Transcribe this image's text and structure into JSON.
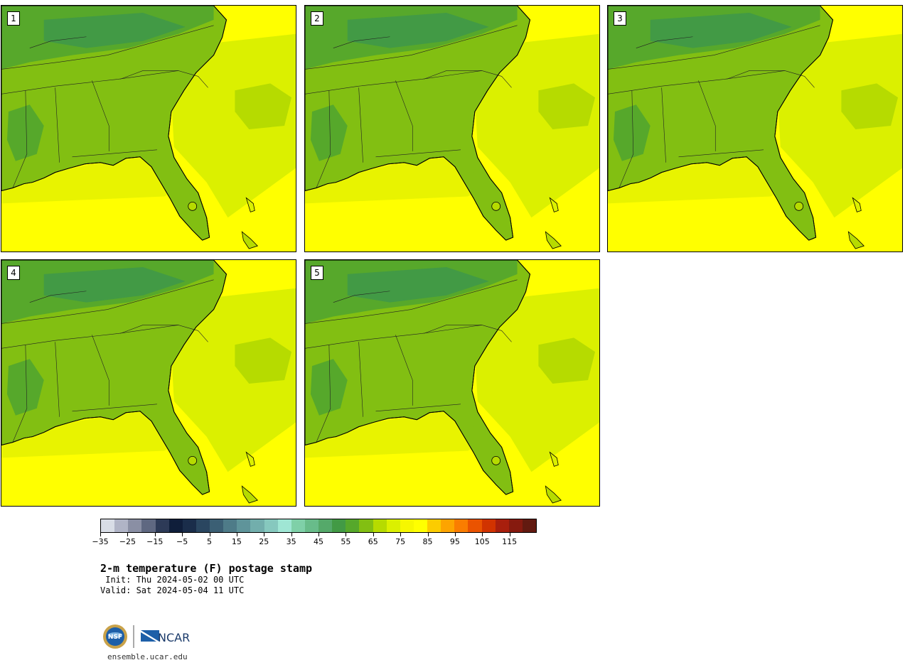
{
  "panels": [
    {
      "label": "1"
    },
    {
      "label": "2"
    },
    {
      "label": "3"
    },
    {
      "label": "4"
    },
    {
      "label": "5"
    }
  ],
  "colorbar": {
    "colors": [
      "#d8dde6",
      "#b0b4c6",
      "#8a8fa4",
      "#5f6881",
      "#2d3a57",
      "#0f1e3a",
      "#1a2d4a",
      "#2a4660",
      "#3b5f74",
      "#4e7b88",
      "#5f949a",
      "#72aeac",
      "#86c8be",
      "#9fe6d4",
      "#7fd0a8",
      "#68bc8a",
      "#55a96a",
      "#429a45",
      "#56a82b",
      "#82bf12",
      "#b6db00",
      "#dbf000",
      "#f6f700",
      "#ffff00",
      "#fccc00",
      "#fda400",
      "#fa7d00",
      "#ea5300",
      "#d13300",
      "#a81f0d",
      "#861a0f",
      "#621a10"
    ],
    "tick_labels": [
      "−35",
      "−25",
      "−15",
      "−5",
      "5",
      "15",
      "25",
      "35",
      "45",
      "55",
      "65",
      "75",
      "85",
      "95",
      "105",
      "115"
    ]
  },
  "title": "2-m temperature (F) postage stamp",
  "init_line": " Init: Thu 2024-05-02 00 UTC",
  "valid_line": "Valid: Sat 2024-05-04 11 UTC",
  "logos": {
    "nsf": "NSF",
    "ncar": "NCAR",
    "url": "ensemble.ucar.edu"
  }
}
